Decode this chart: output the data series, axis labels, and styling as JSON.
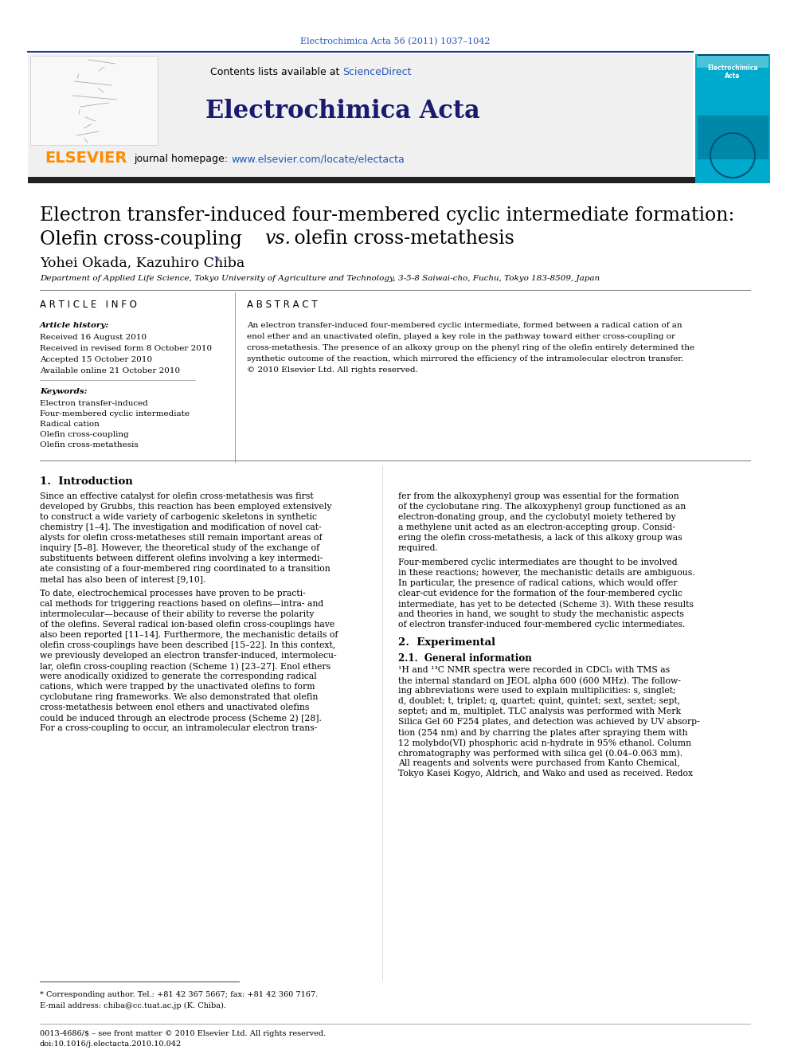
{
  "journal_ref": "Electrochimica Acta 56 (2011) 1037–1042",
  "contents_text": "Contents lists available at ",
  "science_direct": "ScienceDirect",
  "journal_name": "Electrochimica Acta",
  "homepage_prefix": "journal homepage: ",
  "homepage_url": "www.elsevier.com/locate/electacta",
  "elsevier_text": "ELSEVIER",
  "article_title_line1": "Electron transfer-induced four-membered cyclic intermediate formation:",
  "article_title_line2": "Olefin cross-coupling ",
  "article_title_vs": "vs.",
  "article_title_line2_rest": " olefin cross-metathesis",
  "authors": "Yohei Okada, Kazuhiro Chiba",
  "author_star": "*",
  "affiliation": "Department of Applied Life Science, Tokyo University of Agriculture and Technology, 3-5-8 Saiwai-cho, Fuchu, Tokyo 183-8509, Japan",
  "article_info_header": "A R T I C L E   I N F O",
  "abstract_header": "A B S T R A C T",
  "article_history_label": "Article history:",
  "received_label": "Received 16 August 2010",
  "received_revised": "Received in revised form 8 October 2010",
  "accepted_label": "Accepted 15 October 2010",
  "available_label": "Available online 21 October 2010",
  "keywords_label": "Keywords:",
  "keyword1": "Electron transfer-induced",
  "keyword2": "Four-membered cyclic intermediate",
  "keyword3": "Radical cation",
  "keyword4": "Olefin cross-coupling",
  "keyword5": "Olefin cross-metathesis",
  "intro_header": "1.  Introduction",
  "experimental_header": "2.  Experimental",
  "general_info_header": "2.1.  General information",
  "footnote_star": "* Corresponding author. Tel.: +81 42 367 5667; fax: +81 42 360 7167.",
  "footnote_email": "E-mail address: chiba@cc.tuat.ac.jp (K. Chiba).",
  "footer_issn": "0013-4686/$ – see front matter © 2010 Elsevier Ltd. All rights reserved.",
  "footer_doi": "doi:10.1016/j.electacta.2010.10.042",
  "header_bg": "#f0f0f0",
  "header_stripe_color": "#1a3a8a",
  "elsevier_color": "#FF8C00",
  "link_color": "#2255bb",
  "journal_title_color": "#1a1a6e",
  "body_text_color": "#000000",
  "journal_ref_color": "#2255bb"
}
